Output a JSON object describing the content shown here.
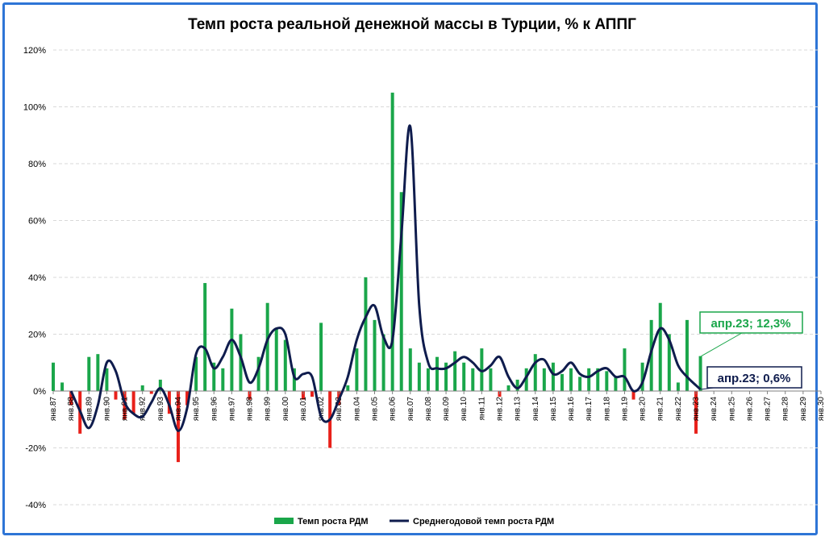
{
  "chart_data": {
    "type": "bar+line",
    "title": "Темп роста реальной денежной массы в Турции, % к АППГ",
    "xlabel": "",
    "ylabel": "",
    "ylim": [
      -40,
      120
    ],
    "yticks": [
      -40,
      -20,
      0,
      20,
      40,
      60,
      80,
      100,
      120
    ],
    "ytick_labels": [
      "-40%",
      "-20%",
      "0%",
      "20%",
      "40%",
      "60%",
      "80%",
      "100%",
      "120%"
    ],
    "grid": true,
    "legend_position": "bottom",
    "x_tick_labels": [
      "янв.87",
      "янв.88",
      "янв.89",
      "янв.90",
      "янв.91",
      "янв.92",
      "янв.93",
      "янв.94",
      "янв.95",
      "янв.96",
      "янв.97",
      "янв.98",
      "янв.99",
      "янв.00",
      "янв.01",
      "янв.02",
      "янв.03",
      "янв.04",
      "янв.05",
      "янв.06",
      "янв.07",
      "янв.08",
      "янв.09",
      "янв.10",
      "янв.11",
      "янв.12",
      "янв.13",
      "янв.14",
      "янв.15",
      "янв.16",
      "янв.17",
      "янв.18",
      "янв.19",
      "янв.20",
      "янв.21",
      "янв.22",
      "янв.23",
      "янв.24",
      "янв.25",
      "янв.26",
      "янв.27",
      "янв.28",
      "янв.29",
      "янв.30"
    ],
    "series": [
      {
        "name": "Темп роста РДМ",
        "kind": "bar",
        "color_positive": "#1aa64a",
        "color_negative": "#e8201a",
        "x_years": [
          1987,
          1987.5,
          1988,
          1988.5,
          1989,
          1989.5,
          1990,
          1990.5,
          1991,
          1991.5,
          1992,
          1992.5,
          1993,
          1993.5,
          1994,
          1994.5,
          1995,
          1995.5,
          1996,
          1996.5,
          1997,
          1997.5,
          1998,
          1998.5,
          1999,
          1999.5,
          2000,
          2000.5,
          2001,
          2001.5,
          2002,
          2002.5,
          2003,
          2003.5,
          2004,
          2004.5,
          2005,
          2005.5,
          2006,
          2006.5,
          2007,
          2007.5,
          2008,
          2008.5,
          2009,
          2009.5,
          2010,
          2010.5,
          2011,
          2011.5,
          2012,
          2012.5,
          2013,
          2013.5,
          2014,
          2014.5,
          2015,
          2015.5,
          2016,
          2016.5,
          2017,
          2017.5,
          2018,
          2018.5,
          2019,
          2019.5,
          2020,
          2020.5,
          2021,
          2021.5,
          2022,
          2022.5,
          2023,
          2023.25
        ],
        "values": [
          10,
          3,
          -5,
          -15,
          12,
          13,
          8,
          -3,
          -10,
          -8,
          2,
          -1,
          4,
          -8,
          -25,
          -5,
          12,
          38,
          10,
          8,
          29,
          20,
          -3,
          12,
          31,
          22,
          18,
          8,
          -3,
          -2,
          24,
          -20,
          -5,
          2,
          15,
          40,
          25,
          20,
          105,
          70,
          15,
          10,
          8,
          12,
          10,
          14,
          10,
          8,
          15,
          8,
          -2,
          2,
          4,
          8,
          13,
          8,
          10,
          6,
          8,
          5,
          8,
          8,
          7,
          5,
          15,
          -3,
          10,
          25,
          31,
          20,
          3,
          25,
          -15,
          12.3
        ]
      },
      {
        "name": "Среднегодовой темп роста РДМ",
        "kind": "line",
        "color": "#0f1c4d",
        "x_years": [
          1988,
          1988.5,
          1989,
          1989.5,
          1990,
          1990.5,
          1991,
          1991.5,
          1992,
          1992.5,
          1993,
          1993.5,
          1994,
          1994.5,
          1995,
          1995.5,
          1996,
          1996.5,
          1997,
          1997.5,
          1998,
          1998.5,
          1999,
          1999.5,
          2000,
          2000.5,
          2001,
          2001.5,
          2002,
          2002.5,
          2003,
          2003.5,
          2004,
          2004.5,
          2005,
          2005.5,
          2006,
          2006.5,
          2007,
          2007.5,
          2008,
          2008.5,
          2009,
          2009.5,
          2010,
          2010.5,
          2011,
          2011.5,
          2012,
          2012.5,
          2013,
          2013.5,
          2014,
          2014.5,
          2015,
          2015.5,
          2016,
          2016.5,
          2017,
          2017.5,
          2018,
          2018.5,
          2019,
          2019.5,
          2020,
          2020.5,
          2021,
          2021.5,
          2022,
          2022.5,
          2023,
          2023.25
        ],
        "values": [
          0,
          -7,
          -13,
          -5,
          10,
          7,
          -4,
          -8,
          -9,
          -4,
          1,
          -5,
          -14,
          -6,
          13,
          15,
          8,
          12,
          18,
          12,
          3,
          8,
          18,
          22,
          20,
          5,
          6,
          5,
          -9,
          -10,
          -3,
          5,
          18,
          26,
          30,
          19,
          18,
          55,
          93,
          30,
          10,
          8,
          8,
          10,
          12,
          10,
          7,
          9,
          12,
          5,
          1,
          5,
          10,
          11,
          6,
          7,
          10,
          6,
          5,
          7,
          8,
          5,
          5,
          0,
          3,
          14,
          22,
          18,
          9,
          5,
          2,
          0.6
        ]
      }
    ],
    "annotations": [
      {
        "text": "апр.23; 12,3%",
        "series": "Темп роста РДМ",
        "color": "#1aa64a"
      },
      {
        "text": "апр.23; 0,6%",
        "series": "Среднегодовой темп роста РДМ",
        "color": "#0f1c4d"
      }
    ]
  }
}
